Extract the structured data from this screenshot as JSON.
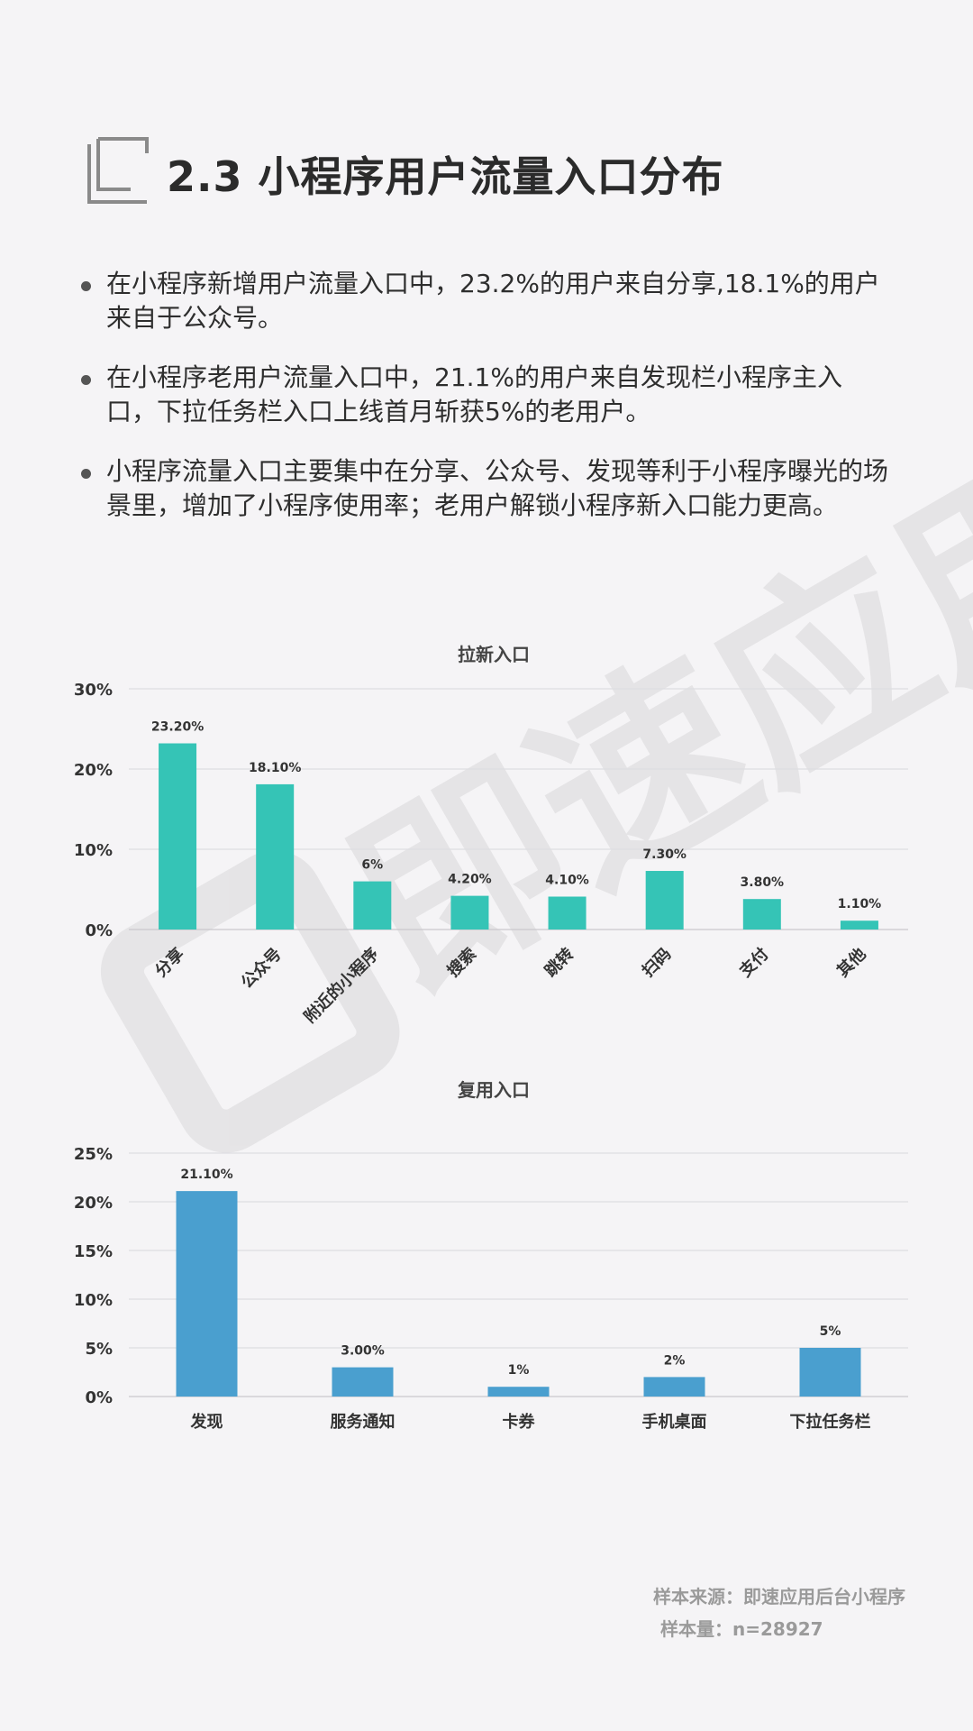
{
  "title": "2.3 小程序用户流量入口分布",
  "bullets": [
    "在小程序新增用户流量入口中，23.2%的用户来自分享,18.1%的用户来自于公众号。",
    "在小程序老用户流量入口中，21.1%的用户来自发现栏小程序主入口，下拉任务栏入口上线首月斩获5%的老用户。",
    "小程序流量入口主要集中在分享、公众号、发现等利于小程序曝光的场景里，增加了小程序使用率；老用户解锁小程序新入口能力更高。"
  ],
  "watermark": "即速应用",
  "colors": {
    "new_bar": "#35c4b6",
    "reuse_bar": "#4a9fcf",
    "grid": "#dedde1"
  },
  "chart_data": [
    {
      "type": "bar",
      "title": "拉新入口",
      "categories": [
        "分享",
        "公众号",
        "附近的小程序",
        "搜索",
        "跳转",
        "扫码",
        "支付",
        "其他"
      ],
      "values": [
        23.2,
        18.1,
        6,
        4.2,
        4.1,
        7.3,
        3.8,
        1.1
      ],
      "data_labels": [
        "23.20%",
        "18.10%",
        "6%",
        "4.20%",
        "4.10%",
        "7.30%",
        "3.80%",
        "1.10%"
      ],
      "yticks": [
        "0%",
        "10%",
        "20%",
        "30%"
      ],
      "ylim": [
        0,
        30
      ],
      "grid": true,
      "xlabel_rotation": -45
    },
    {
      "type": "bar",
      "title": "复用入口",
      "categories": [
        "发现",
        "服务通知",
        "卡券",
        "手机桌面",
        "下拉任务栏"
      ],
      "values": [
        21.1,
        3,
        1,
        2,
        5
      ],
      "data_labels": [
        "21.10%",
        "3.00%",
        "1%",
        "2%",
        "5%"
      ],
      "yticks": [
        "0%",
        "5%",
        "10%",
        "15%",
        "20%",
        "25%"
      ],
      "ylim": [
        0,
        25
      ],
      "grid": true,
      "xlabel_rotation": 0
    }
  ],
  "source": {
    "line1": "样本来源：即速应用后台小程序",
    "line2": "样本量：n=28927"
  }
}
